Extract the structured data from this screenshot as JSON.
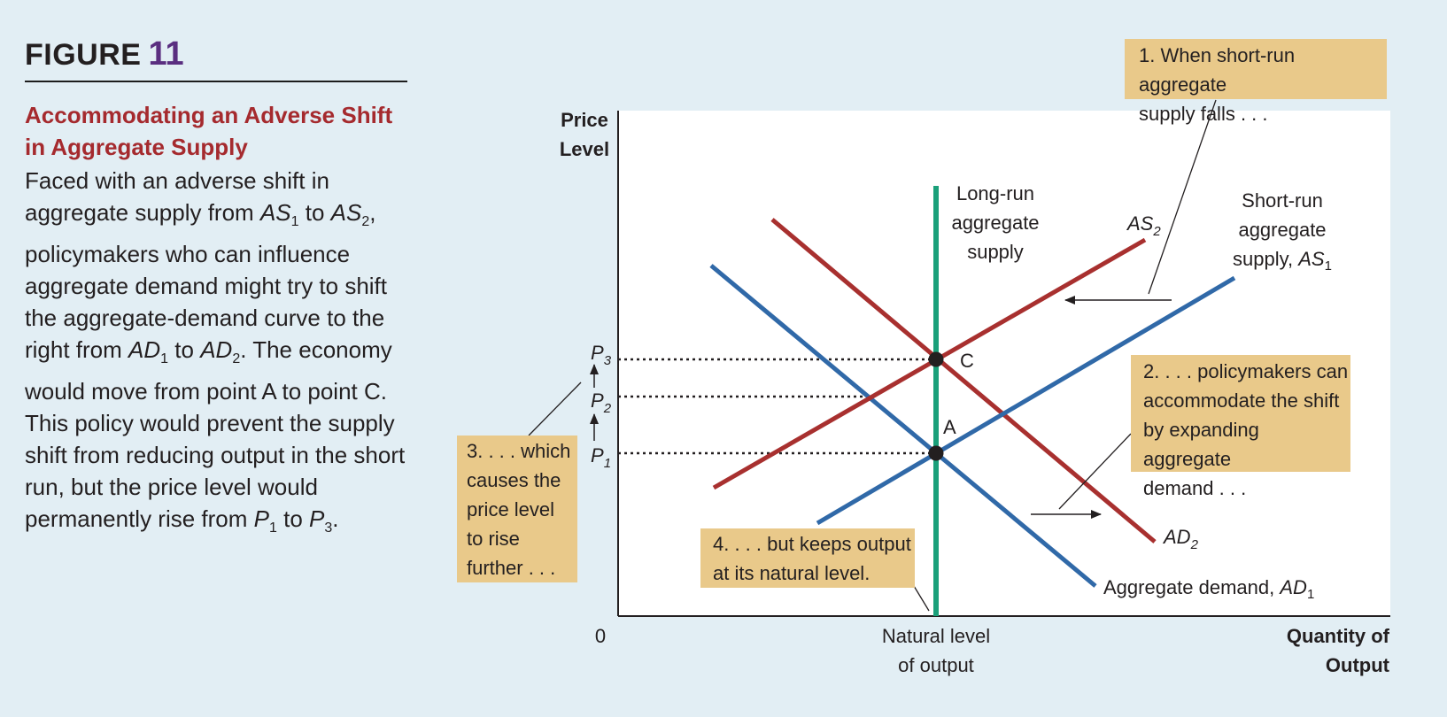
{
  "figure": {
    "label": "FIGURE",
    "number": "11",
    "title": "Accommodating an Adverse Shift in Aggregate Supply",
    "caption": {
      "t1": "Faced with an adverse shift in aggregate supply from ",
      "as": "AS",
      "s1": "1",
      "to1": " to ",
      "s2": "2",
      "t2": ", policymakers who can influence aggregate demand might try to shift the aggregate-demand curve to the right from ",
      "ad": "AD",
      "t3": " to ",
      "t4": ". The economy would move from point A to point C. This policy would prevent the supply shift from reducing output in the short run, but the price level would permanently rise from ",
      "p": "P",
      "s3": "3",
      "t5": "."
    }
  },
  "diagram": {
    "y_axis_title": [
      "Price",
      "Level"
    ],
    "origin": "0",
    "x_axis_title": [
      "Quantity of",
      "Output"
    ],
    "natural_level": [
      "Natural level",
      "of output"
    ],
    "price_ticks": [
      {
        "base": "P",
        "sub": "3"
      },
      {
        "base": "P",
        "sub": "2"
      },
      {
        "base": "P",
        "sub": "1"
      }
    ],
    "points": {
      "a": "A",
      "c": "C"
    },
    "curves": {
      "lras": [
        "Long-run",
        "aggregate",
        "supply"
      ],
      "sras1": [
        "Short-run",
        "aggregate",
        "supply, "
      ],
      "sras1_sym": "AS",
      "sras1_sub": "1",
      "as2_sym": "AS",
      "as2_sub": "2",
      "ad1": "Aggregate demand, ",
      "ad1_sym": "AD",
      "ad1_sub": "1",
      "ad2_sym": "AD",
      "ad2_sub": "2"
    },
    "colors": {
      "red": "#a8302f",
      "blue": "#3069a8",
      "green": "#1aa07a",
      "note": "#e9c98a",
      "title": "#a52a2e",
      "figure_number": "#5a2e80"
    },
    "notes": {
      "n1": [
        "1. When short-run aggregate",
        "supply falls . . ."
      ],
      "n2": [
        "2. . . . policymakers can",
        "accommodate the shift",
        "by expanding aggregate",
        "demand . . ."
      ],
      "n3": [
        "3. . . . which",
        "causes the",
        "price level",
        "to rise",
        "further . . ."
      ],
      "n4": [
        "4. . . . but keeps output",
        "at its natural level."
      ]
    }
  }
}
